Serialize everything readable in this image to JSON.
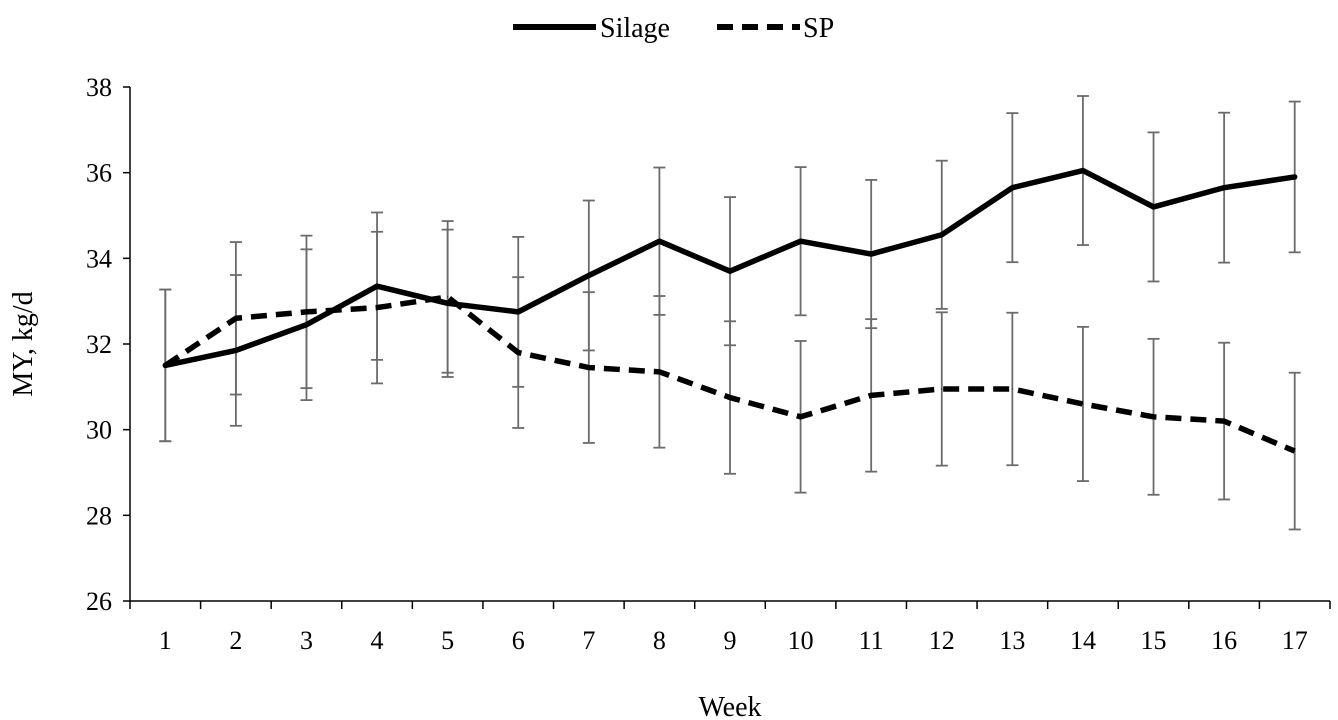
{
  "chart_data": {
    "type": "line",
    "xlabel": "Week",
    "ylabel": "MY, kg/d",
    "ylim": [
      26,
      38
    ],
    "yticks": [
      26,
      28,
      30,
      32,
      34,
      36,
      38
    ],
    "categories": [
      "1",
      "2",
      "3",
      "4",
      "5",
      "6",
      "7",
      "8",
      "9",
      "10",
      "11",
      "12",
      "13",
      "14",
      "15",
      "16",
      "17"
    ],
    "legend_position": "top-center",
    "grid": false,
    "error_bars": true,
    "series": [
      {
        "name": "Silage",
        "line_style": "solid",
        "color": "#000000",
        "values": [
          31.5,
          31.85,
          32.45,
          33.35,
          32.95,
          32.75,
          33.6,
          34.4,
          33.7,
          34.4,
          34.1,
          34.55,
          35.65,
          36.05,
          35.2,
          35.65,
          35.9
        ],
        "error": [
          1.77,
          1.76,
          1.76,
          1.72,
          1.72,
          1.75,
          1.75,
          1.72,
          1.73,
          1.73,
          1.73,
          1.73,
          1.74,
          1.74,
          1.74,
          1.75,
          1.76
        ]
      },
      {
        "name": "SP",
        "line_style": "dashed",
        "color": "#000000",
        "values": [
          31.5,
          32.6,
          32.75,
          32.85,
          33.1,
          31.8,
          31.45,
          31.35,
          30.75,
          30.3,
          30.8,
          30.95,
          30.95,
          30.6,
          30.3,
          30.2,
          29.5
        ],
        "error": [
          1.77,
          1.78,
          1.78,
          1.77,
          1.77,
          1.76,
          1.76,
          1.77,
          1.78,
          1.77,
          1.78,
          1.79,
          1.78,
          1.8,
          1.82,
          1.83,
          1.83
        ]
      }
    ]
  }
}
